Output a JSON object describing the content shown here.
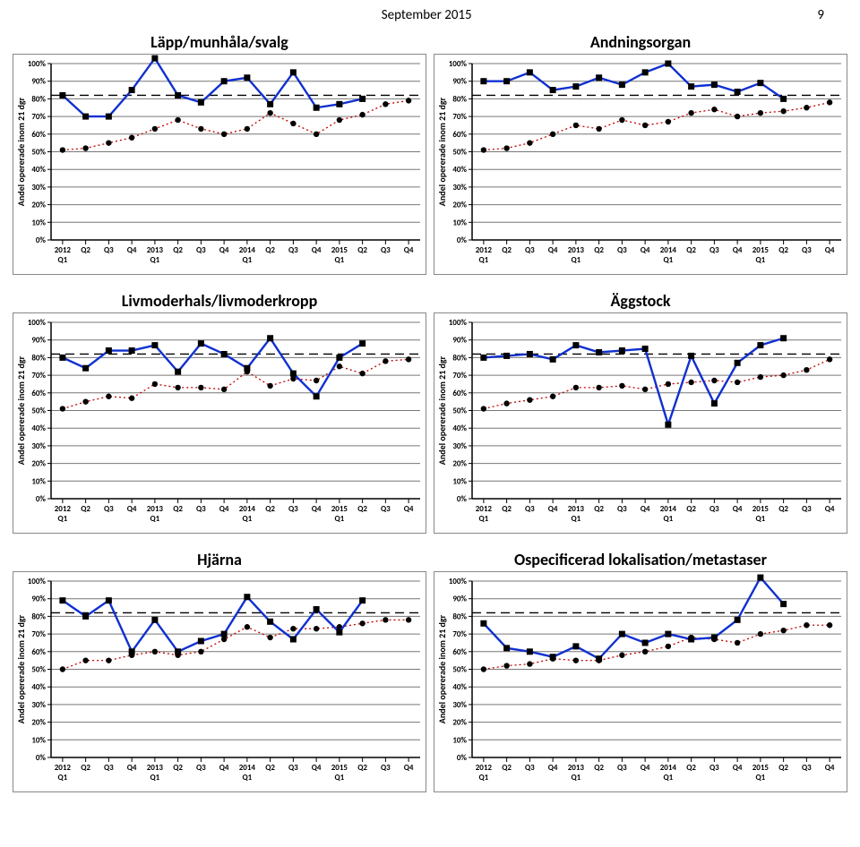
{
  "header": {
    "date": "September 2015",
    "page_number": "9"
  },
  "globals": {
    "y_label": "Andel opererade inom 21 dgr",
    "y_ticks": [
      "0%",
      "10%",
      "20%",
      "30%",
      "40%",
      "50%",
      "60%",
      "70%",
      "80%",
      "90%",
      "100%"
    ],
    "x_top": [
      "Q2",
      "Q3",
      "Q4",
      "",
      "Q2",
      "Q3",
      "Q4",
      "",
      "Q2",
      "Q3",
      "Q4",
      "",
      "Q2",
      "Q3",
      "Q4"
    ],
    "x_bottom": [
      "2012 Q1",
      "",
      "",
      "",
      "2013 Q1",
      "",
      "",
      "",
      "2014 Q1",
      "",
      "",
      "",
      "2015 Q1",
      "",
      "",
      ""
    ],
    "target_pct": 82,
    "colors": {
      "series1": "#1030d0",
      "series2": "#c00000",
      "grid": "#777777",
      "border": "#888888",
      "text": "#000000",
      "background": "#ffffff"
    },
    "line_widths": {
      "series1": 2.4,
      "series2": 1.3,
      "grid": 1,
      "baseline": 1.5
    },
    "marker": {
      "square_size": 7,
      "circle_radius": 3.2
    }
  },
  "panels": [
    {
      "title": "Läpp/munhåla/svalg",
      "series1": [
        82,
        70,
        70,
        85,
        103,
        82,
        78,
        90,
        92,
        77,
        95,
        75,
        77,
        80
      ],
      "series2": [
        51,
        52,
        55,
        58,
        63,
        68,
        63,
        60,
        63,
        72,
        66,
        60,
        68,
        71,
        77,
        79
      ]
    },
    {
      "title": "Andningsorgan",
      "series1": [
        90,
        90,
        95,
        85,
        87,
        92,
        88,
        95,
        100,
        87,
        88,
        84,
        89,
        80
      ],
      "series2": [
        51,
        52,
        55,
        60,
        65,
        63,
        68,
        65,
        67,
        72,
        74,
        70,
        72,
        73,
        75,
        78
      ]
    },
    {
      "title": "Livmoderhals/livmoderkropp",
      "series1": [
        80,
        74,
        84,
        84,
        87,
        72,
        88,
        82,
        74,
        91,
        71,
        58,
        80,
        88
      ],
      "series2": [
        51,
        55,
        58,
        57,
        65,
        63,
        63,
        62,
        72,
        64,
        68,
        67,
        75,
        71,
        78,
        79
      ]
    },
    {
      "title": "Äggstock",
      "series1": [
        80,
        81,
        82,
        79,
        87,
        83,
        84,
        85,
        42,
        81,
        54,
        77,
        87,
        91
      ],
      "series2": [
        51,
        54,
        56,
        58,
        63,
        63,
        64,
        62,
        65,
        66,
        67,
        66,
        69,
        70,
        73,
        79
      ]
    },
    {
      "title": "Hjärna",
      "series1": [
        89,
        80,
        89,
        60,
        78,
        60,
        66,
        70,
        91,
        77,
        67,
        84,
        71,
        89
      ],
      "series2": [
        50,
        55,
        55,
        58,
        60,
        58,
        60,
        67,
        74,
        68,
        73,
        73,
        74,
        76,
        78,
        78
      ]
    },
    {
      "title": "Ospecificerad lokalisation/metastaser",
      "series1": [
        76,
        62,
        60,
        57,
        63,
        56,
        70,
        65,
        70,
        67,
        68,
        78,
        102,
        87
      ],
      "series2": [
        50,
        52,
        53,
        56,
        55,
        55,
        58,
        60,
        63,
        68,
        67,
        65,
        70,
        72,
        75,
        75
      ]
    }
  ]
}
